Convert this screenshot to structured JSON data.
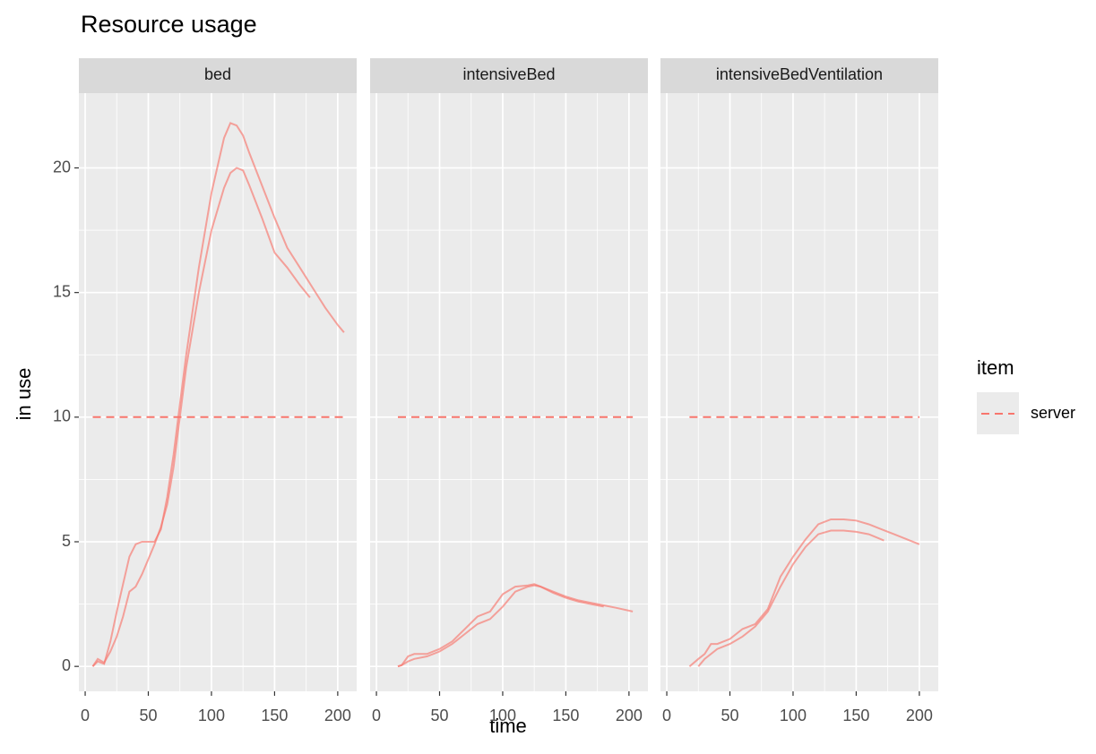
{
  "chart_data": {
    "type": "line",
    "title": "Resource usage",
    "x_label": "time",
    "y_label": "in use",
    "legend_title": "item",
    "xlim": [
      -5,
      215
    ],
    "ylim": [
      -1.0,
      23.0
    ],
    "xticks": [
      0,
      50,
      100,
      150,
      200
    ],
    "yticks": [
      0,
      5,
      10,
      15,
      20
    ],
    "grid": true,
    "legend_position": "right",
    "panels": [
      {
        "title": "bed",
        "series": [
          {
            "color": "#f8766d",
            "x": [
              6,
              10,
              15,
              20,
              25,
              30,
              35,
              40,
              45,
              50,
              55,
              60,
              65,
              70,
              75,
              80,
              90,
              100,
              110,
              115,
              120,
              125,
              130,
              140,
              150,
              160,
              170,
              180,
              190,
              200,
              205
            ],
            "values": [
              0,
              0.2,
              0.1,
              1,
              2.2,
              3.3,
              4.4,
              4.9,
              5,
              5,
              5,
              5.5,
              6.8,
              8.5,
              10.5,
              12.5,
              16,
              19,
              21.2,
              21.8,
              21.7,
              21.3,
              20.6,
              19.3,
              18,
              16.8,
              16,
              15.2,
              14.4,
              13.7,
              13.4
            ]
          },
          {
            "color": "#f8766d",
            "x": [
              6,
              10,
              15,
              20,
              25,
              30,
              35,
              40,
              45,
              50,
              55,
              60,
              65,
              70,
              75,
              80,
              90,
              100,
              110,
              115,
              120,
              125,
              130,
              140,
              150,
              160,
              170,
              178
            ],
            "values": [
              0,
              0.3,
              0.15,
              0.6,
              1.2,
              2,
              3,
              3.2,
              3.7,
              4.3,
              4.9,
              5.6,
              6.5,
              8,
              10,
              12,
              15,
              17.5,
              19.2,
              19.8,
              20,
              19.9,
              19.3,
              18,
              16.6,
              16,
              15.3,
              14.8
            ]
          },
          {
            "name": "server",
            "color": "#f8766d",
            "linetype": "dashed",
            "x": [
              6,
              205
            ],
            "values": [
              10,
              10
            ]
          }
        ]
      },
      {
        "title": "intensiveBed",
        "series": [
          {
            "color": "#f8766d",
            "x": [
              17,
              20,
              25,
              30,
              40,
              50,
              60,
              70,
              80,
              90,
              100,
              110,
              120,
              125,
              130,
              140,
              150,
              160,
              170,
              180,
              190,
              203
            ],
            "values": [
              0,
              0.05,
              0.4,
              0.5,
              0.5,
              0.7,
              1.0,
              1.5,
              2.0,
              2.2,
              2.9,
              3.2,
              3.25,
              3.3,
              3.2,
              3.0,
              2.8,
              2.65,
              2.55,
              2.45,
              2.35,
              2.2
            ]
          },
          {
            "color": "#f8766d",
            "x": [
              17,
              20,
              25,
              30,
              40,
              50,
              60,
              70,
              80,
              90,
              100,
              110,
              120,
              125,
              130,
              140,
              150,
              160,
              170,
              180
            ],
            "values": [
              0,
              0.05,
              0.2,
              0.3,
              0.4,
              0.6,
              0.9,
              1.3,
              1.7,
              1.9,
              2.4,
              3.0,
              3.2,
              3.25,
              3.2,
              2.95,
              2.75,
              2.6,
              2.5,
              2.4
            ]
          },
          {
            "name": "server",
            "color": "#f8766d",
            "linetype": "dashed",
            "x": [
              17,
              203
            ],
            "values": [
              10,
              10
            ]
          }
        ]
      },
      {
        "title": "intensiveBedVentilation",
        "series": [
          {
            "color": "#f8766d",
            "x": [
              18,
              25,
              30,
              35,
              40,
              50,
              60,
              70,
              80,
              90,
              100,
              110,
              120,
              130,
              140,
              150,
              160,
              170,
              180,
              190,
              200
            ],
            "values": [
              0,
              0.3,
              0.5,
              0.9,
              0.9,
              1.1,
              1.5,
              1.7,
              2.3,
              3.6,
              4.4,
              5.1,
              5.7,
              5.9,
              5.9,
              5.85,
              5.7,
              5.5,
              5.3,
              5.1,
              4.9
            ]
          },
          {
            "color": "#f8766d",
            "x": [
              25,
              30,
              40,
              50,
              60,
              70,
              80,
              90,
              100,
              110,
              120,
              130,
              140,
              150,
              160,
              172
            ],
            "values": [
              0,
              0.3,
              0.7,
              0.9,
              1.2,
              1.6,
              2.2,
              3.2,
              4.1,
              4.8,
              5.3,
              5.45,
              5.45,
              5.4,
              5.3,
              5.05
            ]
          },
          {
            "name": "server",
            "color": "#f8766d",
            "linetype": "dashed",
            "x": [
              18,
              200
            ],
            "values": [
              10,
              10
            ]
          }
        ]
      }
    ]
  }
}
